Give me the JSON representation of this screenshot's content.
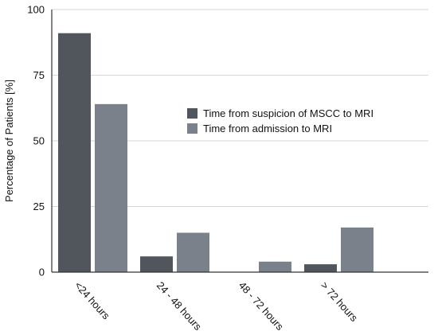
{
  "chart_data": {
    "type": "bar",
    "ylabel": "Percentage of Patients [%]",
    "xlabel": "",
    "ylim": [
      0,
      100
    ],
    "yticks": [
      0,
      25,
      50,
      75,
      100
    ],
    "categories": [
      "<24 hours",
      "24 - 48 hours",
      "48 - 72 hours",
      "> 72 hours"
    ],
    "series": [
      {
        "name": "Time from suspicion of MSCC to MRI",
        "color": "#50565c",
        "values": [
          91,
          6,
          0,
          3
        ]
      },
      {
        "name": "Time from admission to MRI",
        "color": "#7b818a",
        "values": [
          64,
          15,
          4,
          17
        ]
      }
    ],
    "grid": "horizontal",
    "legend_position": "center-right"
  }
}
